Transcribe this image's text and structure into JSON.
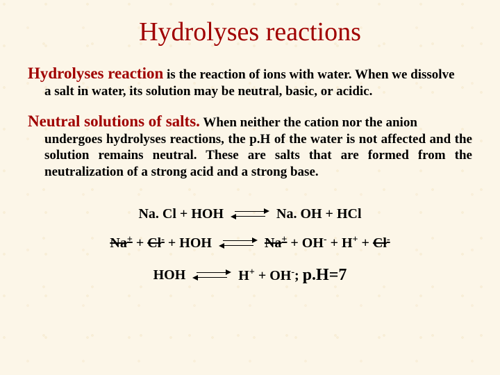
{
  "title": {
    "text": "Hydrolyses reactions",
    "color": "#a00000",
    "fontsize": 38
  },
  "section1": {
    "lead": "Hydrolyses reaction",
    "lead_color": "#a00000",
    "lead_fontsize": 23,
    "body_first": " is the reaction of ions with water. When we dissolve",
    "body_rest": "a salt in water, its solution may be neutral, basic, or acidic.",
    "body_fontsize": 19
  },
  "section2": {
    "lead": "Neutral solutions of salts.",
    "lead_color": "#a00000",
    "lead_fontsize": 23,
    "body_first": " When neither the cation nor the anion",
    "body_rest": "undergoes hydrolyses reactions, the p.H of the water is not affected and the solution remains neutral. These are salts that are formed from the neutralization of a strong acid and a strong base.",
    "body_fontsize": 19
  },
  "equations": {
    "fontsize": 20,
    "eq1": {
      "left": "Na. Cl + HOH",
      "right": "Na. OH + HCl"
    },
    "eq2": {
      "l_Na": "Na",
      "l_Na_sup": "+",
      "l_plus1": " + ",
      "l_Cl": "Cl",
      "l_Cl_sup": "-",
      "l_plus2": " + HOH",
      "r_Na": "Na",
      "r_Na_sup": "+",
      "r_plus1": " + OH",
      "r_OH_sup": "-",
      "r_plus2": " + H",
      "r_H_sup": "+",
      "r_plus3": " + ",
      "r_Cl": "Cl",
      "r_Cl_sup": "-"
    },
    "eq3": {
      "left": "HOH",
      "r1": "H",
      "r1_sup": "+",
      "r_plus": " + OH",
      "r2_sup": "-",
      "r_semi": "; ",
      "ph": "p.H=7"
    }
  },
  "colors": {
    "background": "#fcf6e8",
    "text": "#000000",
    "accent": "#a00000"
  }
}
